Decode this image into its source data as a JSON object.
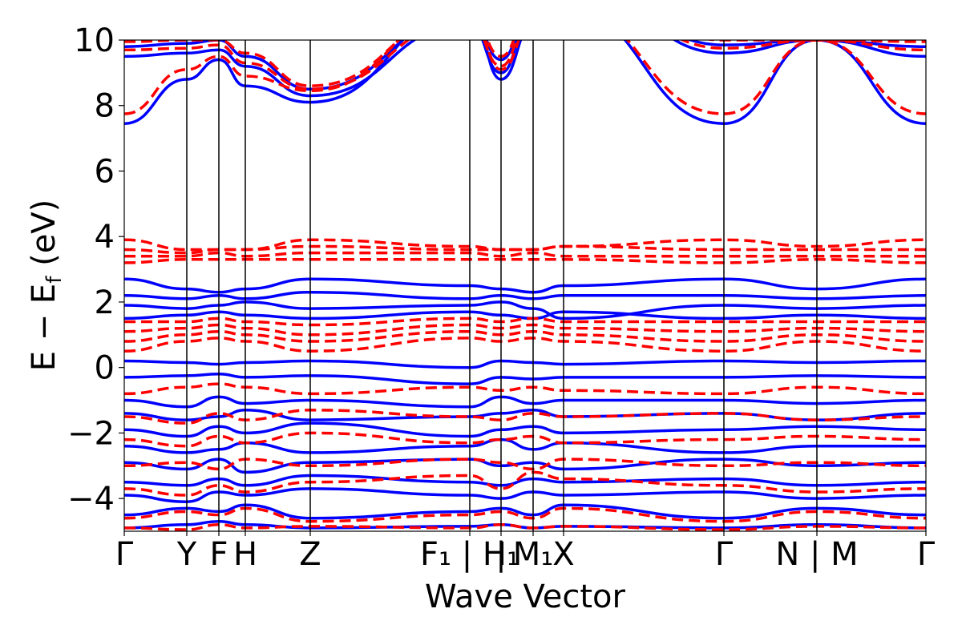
{
  "chart_data": {
    "type": "line",
    "xlabel": "Wave Vector",
    "ylabel": "E − E",
    "ylabel_sub": "f",
    "ylabel_unit": " (eV)",
    "ylim": [
      -5,
      10
    ],
    "xlim": [
      0,
      1
    ],
    "yticks": [
      -4,
      -2,
      0,
      2,
      4,
      6,
      8,
      10
    ],
    "ytick_labels": [
      "−4",
      "−2",
      "0",
      "2",
      "4",
      "6",
      "8",
      "10"
    ],
    "kpoints": [
      {
        "x": 0.0,
        "label": "Γ"
      },
      {
        "x": 0.078,
        "label": "Y"
      },
      {
        "x": 0.118,
        "label": "F"
      },
      {
        "x": 0.151,
        "label": "H"
      },
      {
        "x": 0.232,
        "label": "Z"
      },
      {
        "x": 0.431,
        "label": "F₁ | H₁"
      },
      {
        "x": 0.47,
        "label": "|"
      },
      {
        "x": 0.51,
        "label": "M₁"
      },
      {
        "x": 0.548,
        "label": "X"
      },
      {
        "x": 0.748,
        "label": "Γ"
      },
      {
        "x": 0.864,
        "label": "N | M"
      },
      {
        "x": 1.0,
        "label": "Γ"
      }
    ],
    "series": [
      {
        "style": "solid",
        "color": "#0000ff",
        "bands": [
          [
            -4.9,
            -4.8,
            -4.7,
            -4.8,
            -4.9,
            -4.85,
            -4.8,
            -4.9,
            -4.85,
            -4.9,
            -4.8,
            -4.9
          ],
          [
            -4.5,
            -4.3,
            -4.4,
            -4.2,
            -4.6,
            -4.4,
            -4.3,
            -4.5,
            -4.2,
            -4.6,
            -4.3,
            -4.5
          ],
          [
            -3.9,
            -4.1,
            -3.8,
            -3.9,
            -3.7,
            -3.9,
            -4.0,
            -3.8,
            -3.9,
            -3.8,
            -4.0,
            -3.9
          ],
          [
            -3.5,
            -3.6,
            -3.4,
            -3.6,
            -3.3,
            -3.5,
            -3.6,
            -3.4,
            -3.5,
            -3.4,
            -3.6,
            -3.5
          ],
          [
            -2.9,
            -3.1,
            -2.8,
            -3.2,
            -2.9,
            -2.8,
            -3.0,
            -2.9,
            -3.1,
            -2.8,
            -3.0,
            -2.9
          ],
          [
            -2.4,
            -2.6,
            -2.5,
            -2.3,
            -2.6,
            -2.4,
            -2.2,
            -2.5,
            -2.3,
            -2.6,
            -2.4,
            -2.4
          ],
          [
            -1.9,
            -2.1,
            -1.8,
            -2.0,
            -1.7,
            -2.1,
            -1.9,
            -1.8,
            -2.0,
            -1.9,
            -1.8,
            -1.9
          ],
          [
            -1.4,
            -1.6,
            -1.5,
            -1.3,
            -1.6,
            -1.5,
            -1.4,
            -1.3,
            -1.5,
            -1.4,
            -1.6,
            -1.4
          ],
          [
            -1.0,
            -1.2,
            -0.9,
            -1.1,
            -1.0,
            -1.2,
            -0.9,
            -1.1,
            -1.0,
            -1.0,
            -1.1,
            -1.0
          ],
          [
            -0.3,
            -0.25,
            -0.2,
            -0.3,
            -0.25,
            -0.5,
            -0.3,
            -0.35,
            -0.3,
            -0.3,
            -0.25,
            -0.3
          ],
          [
            0.2,
            0.15,
            0.1,
            0.15,
            0.2,
            0.0,
            0.2,
            0.15,
            0.1,
            0.2,
            0.15,
            0.2
          ],
          [
            1.5,
            1.6,
            1.7,
            1.6,
            1.5,
            1.7,
            1.6,
            1.5,
            1.7,
            1.5,
            1.6,
            1.5
          ],
          [
            1.9,
            1.8,
            1.9,
            2.0,
            1.8,
            1.9,
            2.0,
            1.8,
            1.5,
            1.9,
            1.8,
            1.9
          ],
          [
            2.2,
            2.1,
            2.2,
            2.1,
            2.3,
            2.1,
            2.2,
            2.1,
            2.2,
            2.2,
            2.1,
            2.2
          ],
          [
            2.7,
            2.4,
            2.3,
            2.4,
            2.7,
            2.5,
            2.4,
            2.3,
            2.5,
            2.7,
            2.4,
            2.7
          ],
          [
            7.45,
            8.8,
            9.4,
            8.6,
            8.1,
            11.0,
            8.8,
            10.5,
            11.0,
            7.45,
            10.0,
            7.45
          ],
          [
            9.5,
            9.6,
            9.7,
            9.2,
            8.3,
            10.5,
            9.0,
            11.0,
            12.0,
            9.6,
            10.0,
            9.5
          ],
          [
            9.8,
            9.9,
            10.0,
            9.5,
            8.5,
            10.8,
            9.4,
            11.2,
            12.0,
            9.85,
            10.0,
            9.8
          ]
        ]
      },
      {
        "style": "dashed",
        "color": "#ff0000",
        "bands": [
          [
            -4.9,
            -4.95,
            -4.8,
            -4.9,
            -4.85,
            -4.9,
            -4.8,
            -4.9,
            -4.85,
            -4.95,
            -4.85,
            -4.9
          ],
          [
            -4.6,
            -4.4,
            -4.5,
            -4.3,
            -4.7,
            -4.5,
            -4.4,
            -4.6,
            -4.3,
            -4.7,
            -4.4,
            -4.6
          ],
          [
            -3.7,
            -3.9,
            -3.6,
            -3.8,
            -3.5,
            -3.3,
            -3.7,
            -3.2,
            -3.4,
            -3.6,
            -3.8,
            -3.7
          ],
          [
            -3.0,
            -2.9,
            -3.1,
            -2.8,
            -3.0,
            -2.8,
            -2.9,
            -3.1,
            -2.8,
            -3.0,
            -2.9,
            -3.0
          ],
          [
            -2.2,
            -2.4,
            -2.1,
            -2.3,
            -2.0,
            -2.3,
            -2.2,
            -2.1,
            -2.3,
            -2.2,
            -2.1,
            -2.2
          ],
          [
            -1.5,
            -1.7,
            -1.4,
            -1.6,
            -1.3,
            -1.5,
            -1.6,
            -1.4,
            -1.5,
            -1.4,
            -1.6,
            -1.5
          ],
          [
            -0.8,
            -0.6,
            -0.5,
            -0.6,
            -0.8,
            -0.6,
            -0.7,
            -0.6,
            -0.7,
            -0.8,
            -0.6,
            -0.8
          ],
          [
            0.5,
            0.8,
            0.9,
            0.8,
            0.5,
            0.9,
            0.8,
            0.9,
            0.8,
            0.5,
            0.8,
            0.5
          ],
          [
            0.8,
            1.0,
            1.1,
            1.0,
            0.8,
            1.1,
            1.0,
            1.1,
            1.0,
            0.8,
            1.0,
            0.8
          ],
          [
            1.1,
            1.2,
            1.3,
            1.2,
            1.0,
            1.3,
            1.2,
            1.3,
            1.2,
            1.1,
            1.2,
            1.1
          ],
          [
            1.4,
            1.4,
            1.5,
            1.4,
            1.3,
            1.5,
            1.4,
            1.5,
            1.4,
            1.4,
            1.4,
            1.4
          ],
          [
            3.2,
            3.3,
            3.3,
            3.3,
            3.3,
            3.3,
            3.3,
            3.3,
            3.3,
            3.2,
            3.3,
            3.2
          ],
          [
            3.4,
            3.4,
            3.5,
            3.4,
            3.5,
            3.5,
            3.4,
            3.5,
            3.4,
            3.4,
            3.4,
            3.4
          ],
          [
            3.6,
            3.5,
            3.6,
            3.6,
            3.7,
            3.6,
            3.6,
            3.6,
            3.7,
            3.6,
            3.6,
            3.6
          ],
          [
            3.9,
            3.6,
            3.6,
            3.6,
            3.9,
            3.7,
            3.6,
            3.6,
            3.7,
            3.9,
            3.7,
            3.9
          ],
          [
            7.75,
            9.1,
            9.5,
            8.9,
            8.45,
            11.0,
            9.1,
            10.6,
            11.0,
            7.75,
            10.0,
            7.75
          ],
          [
            9.7,
            9.75,
            9.85,
            9.3,
            8.5,
            10.6,
            9.2,
            11.1,
            12.0,
            9.75,
            10.0,
            9.7
          ],
          [
            9.95,
            10.0,
            10.0,
            9.6,
            8.6,
            10.9,
            9.5,
            11.2,
            12.0,
            10.0,
            10.0,
            9.95
          ]
        ]
      }
    ]
  }
}
